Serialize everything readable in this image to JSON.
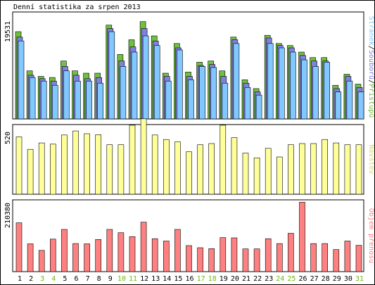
{
  "title": "Denní statistika za srpen 2013",
  "colors": {
    "pages": "#80c8ff",
    "files": "#8080e0",
    "hits": "#70c040",
    "visits": "#ffff9a",
    "bytes": "#ff8080",
    "weekend_day": "#6cb814",
    "weekday": "#000000"
  },
  "panel_labels": {
    "top": {
      "pages": "Stránek",
      "sep1": "/",
      "files": "Souborů",
      "sep2": "/",
      "hits": "Přístupů"
    },
    "middle": "Návštěv",
    "bottom": "Objem přenosu"
  },
  "chart_data": [
    {
      "type": "bar",
      "name_key": "hits-files-pages",
      "categories": [
        "1",
        "2",
        "3",
        "4",
        "5",
        "6",
        "7",
        "8",
        "9",
        "10",
        "11",
        "12",
        "13",
        "14",
        "15",
        "16",
        "17",
        "18",
        "19",
        "20",
        "21",
        "22",
        "23",
        "24",
        "25",
        "26",
        "27",
        "28",
        "29",
        "30",
        "31"
      ],
      "weekend": [
        false,
        false,
        true,
        true,
        false,
        false,
        false,
        false,
        false,
        true,
        true,
        false,
        false,
        false,
        false,
        false,
        true,
        true,
        false,
        false,
        false,
        false,
        false,
        true,
        true,
        false,
        false,
        false,
        false,
        false,
        true
      ],
      "y_tick_label": "19531",
      "ymax": 19531,
      "series": [
        {
          "name": "Přístupů",
          "values": [
            19531,
            10764,
            9525,
            9282,
            12958,
            10764,
            10237,
            10237,
            20992,
            14430,
            17713,
            21786,
            18585,
            10237,
            16883,
            10497,
            12696,
            12958,
            10764,
            18315,
            8757,
            6787,
            18710,
            16883,
            16428,
            14971,
            13733,
            13733,
            7533,
            10008,
            7788
          ]
        },
        {
          "name": "Souborů",
          "values": [
            18315,
            9781,
            9012,
            8473,
            11755,
            9781,
            9012,
            9269,
            20217,
            12958,
            16108,
            20217,
            17449,
            9525,
            15913,
            9525,
            11953,
            12179,
            9525,
            17713,
            8006,
            6044,
            18107,
            16428,
            15913,
            14200,
            12958,
            12958,
            6787,
            9525,
            7046
          ]
        },
        {
          "name": "Stránek",
          "values": [
            17449,
            9269,
            8473,
            7533,
            10764,
            8473,
            8473,
            8006,
            19531,
            11755,
            14971,
            18585,
            16428,
            8473,
            15441,
            8757,
            11755,
            11496,
            8006,
            16883,
            7046,
            5322,
            16883,
            15913,
            14971,
            13226,
            11755,
            12696,
            6044,
            8473,
            6044
          ]
        }
      ]
    },
    {
      "type": "bar",
      "name_key": "visits",
      "categories": [
        "1",
        "2",
        "3",
        "4",
        "5",
        "6",
        "7",
        "8",
        "9",
        "10",
        "11",
        "12",
        "13",
        "14",
        "15",
        "16",
        "17",
        "18",
        "19",
        "20",
        "21",
        "22",
        "23",
        "24",
        "25",
        "26",
        "27",
        "28",
        "29",
        "30",
        "31"
      ],
      "y_tick_label": "520",
      "ymax": 520,
      "series": [
        {
          "name": "Návštěv",
          "values": [
            446,
            349,
            399,
            390,
            461,
            492,
            471,
            463,
            385,
            385,
            537,
            587,
            461,
            426,
            407,
            330,
            385,
            394,
            537,
            440,
            320,
            283,
            357,
            290,
            385,
            394,
            394,
            426,
            399,
            385,
            385
          ]
        }
      ]
    },
    {
      "type": "bar",
      "name_key": "bytes",
      "categories": [
        "1",
        "2",
        "3",
        "4",
        "5",
        "6",
        "7",
        "8",
        "9",
        "10",
        "11",
        "12",
        "13",
        "14",
        "15",
        "16",
        "17",
        "18",
        "19",
        "20",
        "21",
        "22",
        "23",
        "24",
        "25",
        "26",
        "27",
        "28",
        "29",
        "30",
        "31"
      ],
      "y_tick_label": "210380",
      "ymax": 210380,
      "series": [
        {
          "name": "Objem přenosu",
          "values": [
            150500,
            85720,
            65460,
            100100,
            130100,
            86630,
            85720,
            99190,
            130100,
            120000,
            108100,
            152400,
            101400,
            94310,
            130100,
            80200,
            73810,
            70890,
            104900,
            104000,
            69960,
            69960,
            101400,
            86630,
            118200,
            213800,
            86630,
            86630,
            68130,
            94310,
            81110
          ]
        }
      ]
    }
  ]
}
